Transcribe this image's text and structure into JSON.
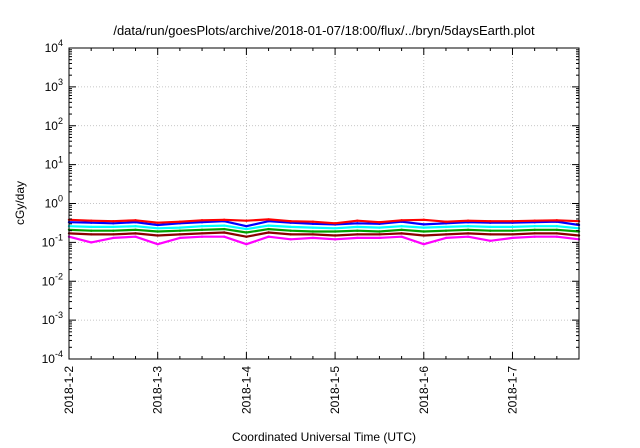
{
  "chart_data": {
    "type": "line",
    "title": "/data/run/goesPlots/archive/2018-01-07/18:00/flux/../bryn/5daysEarth.plot",
    "xlabel": "Coordinated Universal Time (UTC)",
    "ylabel": "cGy/day",
    "xlim": [
      "2018-01-02T00:00",
      "2018-01-07T18:00"
    ],
    "ylim": [
      0.0001,
      10000
    ],
    "yscale": "log",
    "grid": true,
    "x_ticks": [
      "2018-1-2",
      "2018-1-3",
      "2018-1-4",
      "2018-1-5",
      "2018-1-6",
      "2018-1-7"
    ],
    "y_ticks": [
      {
        "base": "10",
        "exp": "-4",
        "value": 0.0001
      },
      {
        "base": "10",
        "exp": "-3",
        "value": 0.001
      },
      {
        "base": "10",
        "exp": "-2",
        "value": 0.01
      },
      {
        "base": "10",
        "exp": "-1",
        "value": 0.1
      },
      {
        "base": "10",
        "exp": "0",
        "value": 1
      },
      {
        "base": "10",
        "exp": "1",
        "value": 10
      },
      {
        "base": "10",
        "exp": "2",
        "value": 100
      },
      {
        "base": "10",
        "exp": "3",
        "value": 1000
      },
      {
        "base": "10",
        "exp": "4",
        "value": 10000
      }
    ],
    "x": [
      "2018-01-02T00:00",
      "2018-01-02T06:00",
      "2018-01-02T12:00",
      "2018-01-02T18:00",
      "2018-01-03T00:00",
      "2018-01-03T06:00",
      "2018-01-03T12:00",
      "2018-01-03T18:00",
      "2018-01-04T00:00",
      "2018-01-04T06:00",
      "2018-01-04T12:00",
      "2018-01-04T18:00",
      "2018-01-05T00:00",
      "2018-01-05T06:00",
      "2018-01-05T12:00",
      "2018-01-05T18:00",
      "2018-01-06T00:00",
      "2018-01-06T06:00",
      "2018-01-06T12:00",
      "2018-01-06T18:00",
      "2018-01-07T00:00",
      "2018-01-07T06:00",
      "2018-01-07T12:00",
      "2018-01-07T18:00"
    ],
    "series": [
      {
        "color": "#ff0000",
        "values": [
          0.38,
          0.36,
          0.35,
          0.37,
          0.32,
          0.34,
          0.37,
          0.38,
          0.36,
          0.39,
          0.35,
          0.34,
          0.31,
          0.36,
          0.33,
          0.37,
          0.38,
          0.34,
          0.36,
          0.35,
          0.35,
          0.36,
          0.37,
          0.35
        ]
      },
      {
        "color": "#0000ff",
        "values": [
          0.33,
          0.32,
          0.31,
          0.33,
          0.28,
          0.31,
          0.33,
          0.35,
          0.26,
          0.35,
          0.32,
          0.3,
          0.29,
          0.31,
          0.3,
          0.34,
          0.29,
          0.31,
          0.33,
          0.32,
          0.32,
          0.33,
          0.34,
          0.28
        ]
      },
      {
        "color": "#00ffff",
        "values": [
          0.26,
          0.25,
          0.25,
          0.26,
          0.23,
          0.24,
          0.26,
          0.27,
          0.22,
          0.27,
          0.25,
          0.24,
          0.23,
          0.25,
          0.24,
          0.26,
          0.24,
          0.25,
          0.26,
          0.25,
          0.25,
          0.26,
          0.26,
          0.23
        ]
      },
      {
        "color": "#00a000",
        "values": [
          0.21,
          0.2,
          0.2,
          0.21,
          0.19,
          0.2,
          0.21,
          0.22,
          0.18,
          0.22,
          0.2,
          0.19,
          0.19,
          0.2,
          0.19,
          0.21,
          0.19,
          0.2,
          0.21,
          0.2,
          0.2,
          0.21,
          0.21,
          0.19
        ]
      },
      {
        "color": "#8b0000",
        "values": [
          0.17,
          0.16,
          0.16,
          0.17,
          0.15,
          0.16,
          0.17,
          0.18,
          0.14,
          0.18,
          0.16,
          0.16,
          0.15,
          0.16,
          0.16,
          0.17,
          0.15,
          0.16,
          0.17,
          0.16,
          0.16,
          0.17,
          0.17,
          0.15
        ]
      },
      {
        "color": "#ff00ff",
        "values": [
          0.14,
          0.1,
          0.13,
          0.14,
          0.09,
          0.13,
          0.14,
          0.14,
          0.09,
          0.14,
          0.12,
          0.13,
          0.12,
          0.13,
          0.13,
          0.14,
          0.09,
          0.13,
          0.14,
          0.11,
          0.13,
          0.14,
          0.14,
          0.12
        ]
      }
    ]
  }
}
